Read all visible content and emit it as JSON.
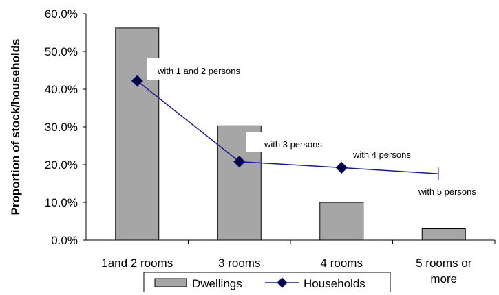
{
  "chart_data": {
    "type": "bar",
    "ylabel": "Proportion of stock/households",
    "xlabel": "",
    "ylim": [
      0,
      60
    ],
    "yticks": [
      "0.0%",
      "10.0%",
      "20.0%",
      "30.0%",
      "40.0%",
      "50.0%",
      "60.0%"
    ],
    "categories": [
      [
        "1and 2 rooms"
      ],
      [
        "3  rooms"
      ],
      [
        "4 rooms"
      ],
      [
        "5 rooms or",
        "more"
      ]
    ],
    "series": [
      {
        "name": "Dwellings",
        "kind": "bar",
        "color": "#a6a6a6",
        "values": [
          56.2,
          30.3,
          10.0,
          3.0
        ]
      },
      {
        "name": "Households",
        "kind": "line",
        "color": "#1a1a8c",
        "values": [
          42.2,
          20.8,
          19.2,
          17.6
        ]
      }
    ],
    "annotations": [
      "with 1 and 2 persons",
      "with 3 persons",
      "with 4 persons",
      "with 5 persons"
    ],
    "legend": {
      "position": "bottom",
      "items": [
        "Dwellings",
        "Households"
      ]
    },
    "grid": false
  }
}
